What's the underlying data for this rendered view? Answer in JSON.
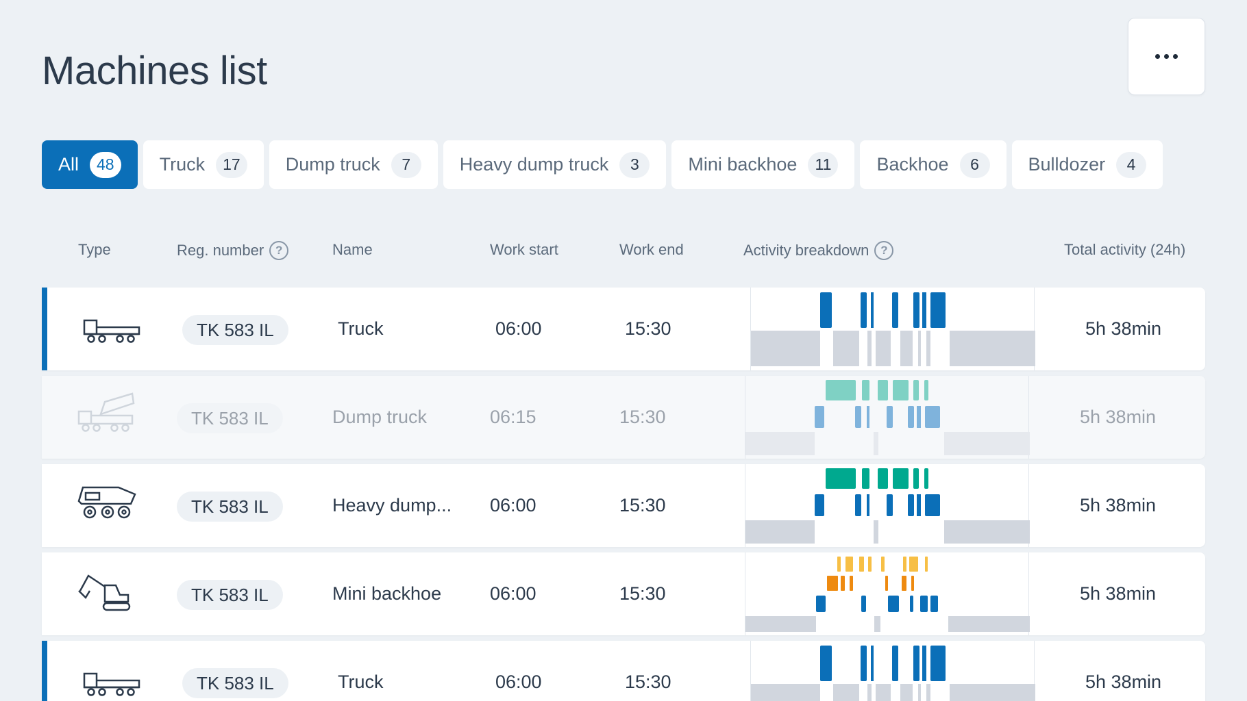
{
  "page": {
    "title": "Machines list"
  },
  "tabs": [
    {
      "label": "All",
      "count": "48",
      "active": true
    },
    {
      "label": "Truck",
      "count": "17"
    },
    {
      "label": "Dump truck",
      "count": "7"
    },
    {
      "label": "Heavy dump truck",
      "count": "3"
    },
    {
      "label": "Mini backhoe",
      "count": "11"
    },
    {
      "label": "Backhoe",
      "count": "6"
    },
    {
      "label": "Bulldozer",
      "count": "4"
    }
  ],
  "columns": {
    "type": "Type",
    "reg_number": "Reg. number",
    "name": "Name",
    "work_start": "Work start",
    "work_end": "Work end",
    "activity_breakdown": "Activity breakdown",
    "total_activity": "Total activity (24h)"
  },
  "rows": [
    {
      "icon": "flatbed-truck-icon",
      "reg": "TK 583 IL",
      "name": "Truck",
      "start": "06:00",
      "end": "15:30",
      "total": "5h 38min",
      "accent": true,
      "inactive": false
    },
    {
      "icon": "dump-truck-icon",
      "reg": "TK 583 IL",
      "name": "Dump truck",
      "start": "06:15",
      "end": "15:30",
      "total": "5h 38min",
      "accent": false,
      "inactive": true
    },
    {
      "icon": "heavy-dump-truck-icon",
      "reg": "TK 583 IL",
      "name": "Heavy dump...",
      "start": "06:00",
      "end": "15:30",
      "total": "5h 38min",
      "accent": false,
      "inactive": false
    },
    {
      "icon": "mini-backhoe-icon",
      "reg": "TK 583 IL",
      "name": "Mini backhoe",
      "start": "06:00",
      "end": "15:30",
      "total": "5h 38min",
      "accent": false,
      "inactive": false
    },
    {
      "icon": "flatbed-truck-icon",
      "reg": "TK 583 IL",
      "name": "Truck",
      "start": "06:00",
      "end": "15:30",
      "total": "5h 38min",
      "accent": true,
      "inactive": false
    }
  ],
  "colors": {
    "primary": "#0b6fb8",
    "blue_bar": "#0b6fb8",
    "gray_bar": "#d1d6de",
    "teal_bar": "#00a98f",
    "light_teal_bar": "#7fd1c4",
    "yellow_bar": "#f7bf45",
    "orange_bar": "#ee8a10"
  }
}
